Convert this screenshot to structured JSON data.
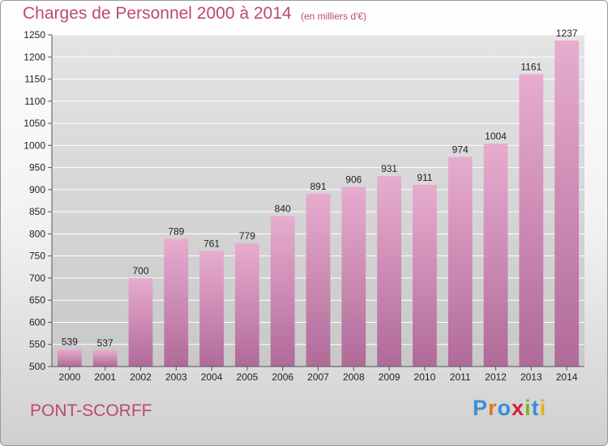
{
  "header": {
    "title": "Charges de Personnel 2000 à 2014",
    "subtitle": "(en milliers d'€)"
  },
  "footer": {
    "town": "PONT-SCORFF",
    "logo_text": "Proxiti"
  },
  "colors": {
    "title": "#c0486f",
    "bar_top": "#e8acd0",
    "bar_bottom": "#b06a98",
    "logo_letters": [
      "#3a8fd4",
      "#e07a1a",
      "#3a8fd4",
      "#d4203a",
      "#7ab52a",
      "#3a8fd4",
      "#e0b020"
    ]
  },
  "chart_data": {
    "type": "bar",
    "title": "Charges de Personnel 2000 à 2014",
    "subtitle": "(en milliers d'€)",
    "categories": [
      "2000",
      "2001",
      "2002",
      "2003",
      "2004",
      "2005",
      "2006",
      "2007",
      "2008",
      "2009",
      "2010",
      "2011",
      "2012",
      "2013",
      "2014"
    ],
    "values": [
      539,
      537,
      700,
      789,
      761,
      779,
      840,
      891,
      906,
      931,
      911,
      974,
      1004,
      1161,
      1237
    ],
    "ylim": [
      500,
      1250
    ],
    "yticks": [
      500,
      550,
      600,
      650,
      700,
      750,
      800,
      850,
      900,
      950,
      1000,
      1050,
      1100,
      1150,
      1200,
      1250
    ],
    "grid": true,
    "xlabel": "",
    "ylabel": ""
  }
}
